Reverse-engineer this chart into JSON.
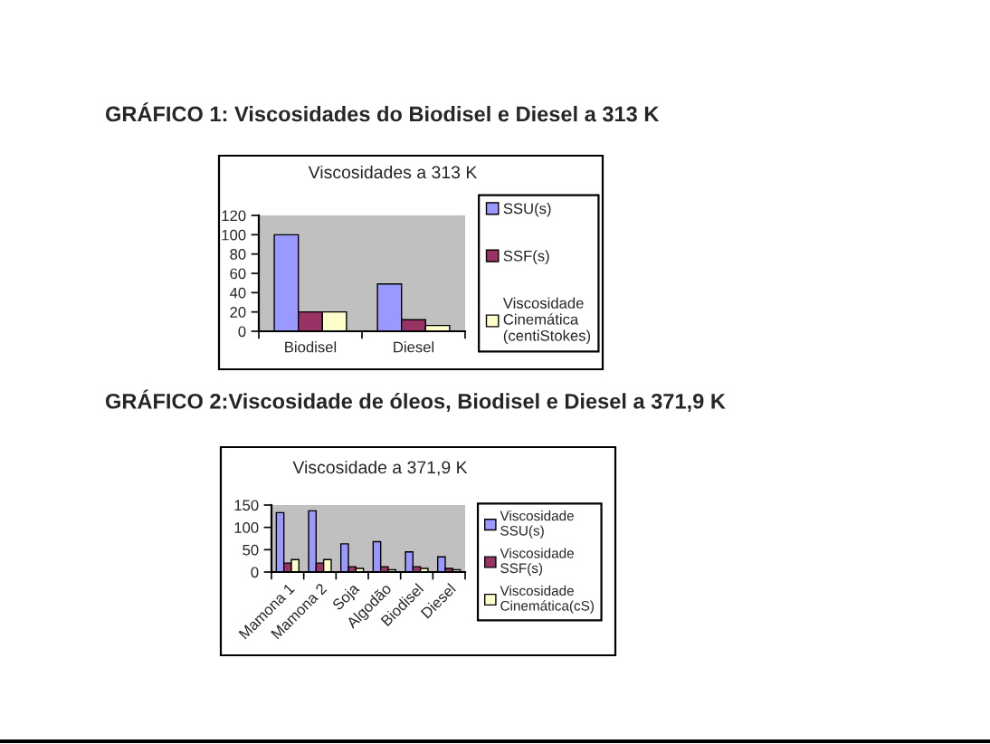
{
  "chart_data": [
    {
      "type": "bar",
      "title": "GRÁFICO 1: Viscosidades do Biodisel e Diesel a 313 K",
      "subtitle": "Viscosidades a 313 K",
      "categories": [
        "Biodisel",
        "Diesel"
      ],
      "series": [
        {
          "name": "SSU(s)",
          "color": "#9999ff",
          "values": [
            100,
            49
          ]
        },
        {
          "name": "SSF(s)",
          "color": "#993366",
          "values": [
            20,
            12
          ]
        },
        {
          "name": "Viscosidade Cinemática (centiStokes)",
          "color": "#ffffcc",
          "values": [
            20,
            6
          ]
        }
      ],
      "ylim": [
        0,
        120
      ],
      "yticks": [
        0,
        20,
        40,
        60,
        80,
        100,
        120
      ],
      "grid": false,
      "legend": "right"
    },
    {
      "type": "bar",
      "title": "GRÁFICO 2:Viscosidade de óleos, Biodisel e Diesel a 371,9 K",
      "subtitle": "Viscosidade a 371,9 K",
      "categories": [
        "Mamona 1",
        "Mamona 2",
        "Soja",
        "Algodão",
        "Biodisel",
        "Diesel"
      ],
      "series": [
        {
          "name": "Viscosidade SSU(s)",
          "color": "#9999ff",
          "values": [
            133,
            137,
            63,
            68,
            45,
            34
          ]
        },
        {
          "name": "Viscosidade SSF(s)",
          "color": "#993366",
          "values": [
            20,
            20,
            12,
            12,
            12,
            8
          ]
        },
        {
          "name": "Viscosidade Cinemática(cS)",
          "color": "#ffffcc",
          "values": [
            28,
            28,
            8,
            5,
            8,
            5
          ]
        }
      ],
      "ylim": [
        0,
        150
      ],
      "yticks": [
        0,
        50,
        100,
        150
      ],
      "grid": false,
      "legend": "right"
    }
  ]
}
